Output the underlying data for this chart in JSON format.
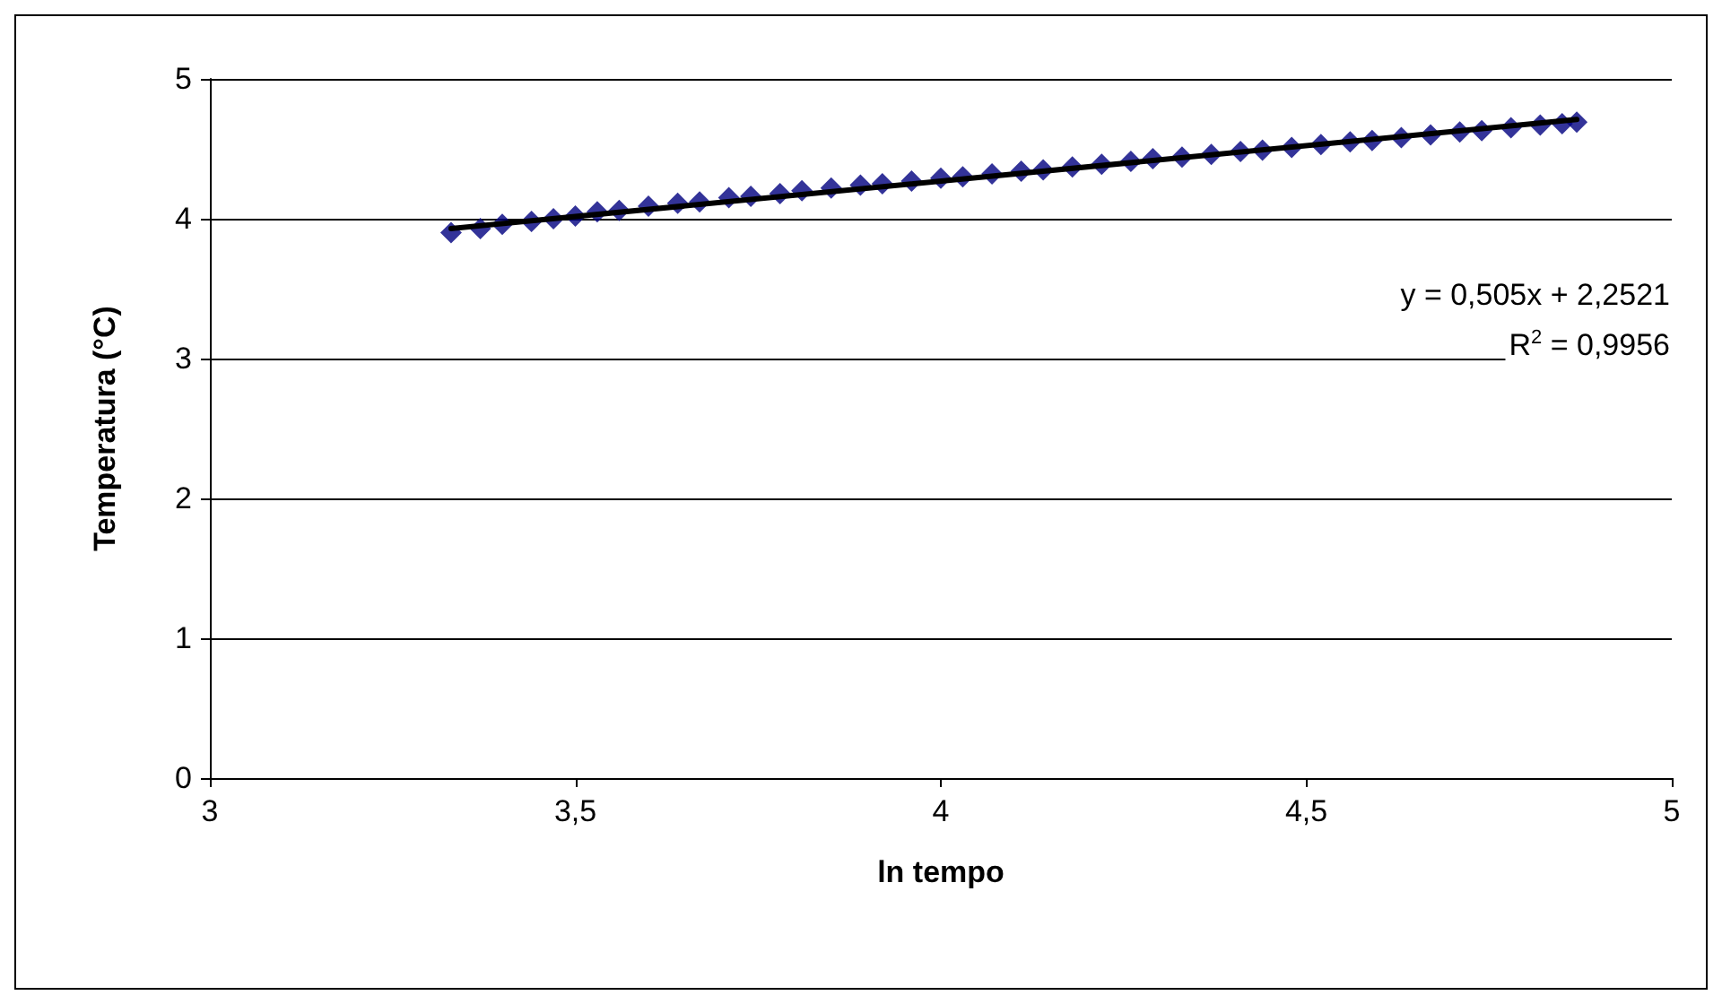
{
  "chart_data": {
    "type": "scatter",
    "xlabel": "ln tempo",
    "ylabel": "Temperatura (°C)",
    "xlim": [
      3,
      5
    ],
    "xticks": [
      3,
      {
        "value": 3.5,
        "label": "3,5"
      },
      4,
      {
        "value": 4.5,
        "label": "4,5"
      },
      5
    ],
    "ylim": [
      0,
      5
    ],
    "yticks": [
      0,
      1,
      2,
      3,
      4,
      5
    ],
    "grid": "y",
    "annotations": [
      "y = 0,505x + 2,2521",
      "R$^{2}$ = 0,9956"
    ],
    "series": [
      {
        "marker": "diamond",
        "color": "#000080",
        "x": [
          3.33,
          3.37,
          3.4,
          3.44,
          3.47,
          3.5,
          3.53,
          3.56,
          3.6,
          3.64,
          3.67,
          3.71,
          3.74,
          3.78,
          3.81,
          3.85,
          3.89,
          3.92,
          3.96,
          4.0,
          4.03,
          4.07,
          4.11,
          4.14,
          4.18,
          4.22,
          4.26,
          4.29,
          4.33,
          4.37,
          4.41,
          4.44,
          4.48,
          4.52,
          4.56,
          4.59,
          4.63,
          4.67,
          4.71,
          4.74,
          4.78,
          4.82,
          4.85,
          4.87
        ],
        "values": [
          3.9,
          3.93,
          3.96,
          3.98,
          4.0,
          4.02,
          4.05,
          4.06,
          4.09,
          4.11,
          4.12,
          4.15,
          4.16,
          4.18,
          4.2,
          4.22,
          4.24,
          4.25,
          4.27,
          4.29,
          4.3,
          4.32,
          4.34,
          4.35,
          4.37,
          4.39,
          4.41,
          4.43,
          4.44,
          4.46,
          4.48,
          4.49,
          4.51,
          4.53,
          4.55,
          4.56,
          4.58,
          4.6,
          4.62,
          4.63,
          4.65,
          4.67,
          4.68,
          4.69
        ]
      },
      {
        "type": "line",
        "marker": "none",
        "color": "#000000",
        "x": [
          3.33,
          4.87
        ],
        "values": [
          3.93,
          4.71
        ]
      }
    ]
  }
}
